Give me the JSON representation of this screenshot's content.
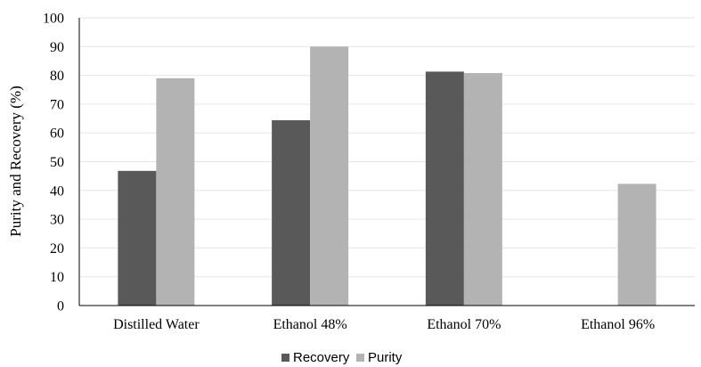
{
  "chart_data": {
    "type": "bar",
    "categories": [
      "Distilled Water",
      "Ethanol 48%",
      "Ethanol 70%",
      "Ethanol 96%"
    ],
    "series": [
      {
        "name": "Recovery",
        "values": [
          46.8,
          64.4,
          81.3,
          0
        ],
        "color": "#595959"
      },
      {
        "name": "Purity",
        "values": [
          79.0,
          90.0,
          80.8,
          42.3
        ],
        "color": "#b3b3b3"
      }
    ],
    "title": "",
    "xlabel": "",
    "ylabel": "Purity and Recovery (%)",
    "ylim": [
      0,
      100
    ],
    "yticks": [
      0,
      10,
      20,
      30,
      40,
      50,
      60,
      70,
      80,
      90,
      100
    ],
    "grid": true,
    "legend": "bottom-center"
  }
}
